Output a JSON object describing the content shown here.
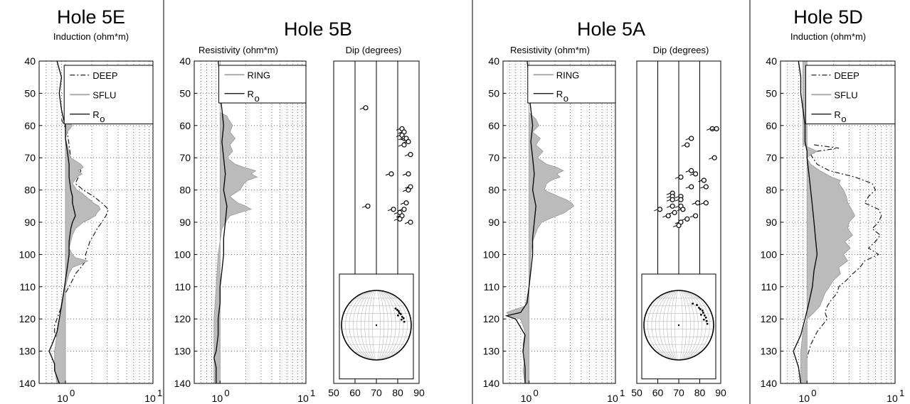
{
  "chart_data": [
    {
      "type": "line",
      "panel": "Hole 5E",
      "title": "Hole 5E",
      "subtitle": "Induction (ohm*m)",
      "xscale": "log",
      "xlim": [
        0.5,
        10
      ],
      "ylim": [
        40,
        140
      ],
      "y_reversed": true,
      "yticks": [
        "40",
        "50",
        "60",
        "70",
        "80",
        "90",
        "100",
        "110",
        "120",
        "130",
        "140"
      ],
      "xtick_base": [
        "10",
        "10"
      ],
      "xtick_exp": [
        "0",
        "1"
      ],
      "grid": true,
      "legend_position": "top-right",
      "legend_box_bottom_depth": 59.5,
      "series": [
        {
          "name": "DEEP",
          "suffix": "",
          "style": "dashdot",
          "color": "#222222",
          "depth": [
            58,
            62,
            66,
            70,
            72,
            74,
            76,
            78,
            80,
            82,
            84,
            86,
            88,
            90,
            92,
            94,
            96,
            98,
            100,
            102,
            104,
            106,
            108,
            110,
            112,
            114,
            116,
            118,
            120,
            122,
            124,
            126,
            128,
            130,
            134,
            140
          ],
          "values": [
            0.9,
            1.05,
            1.1,
            1.15,
            1.3,
            1.5,
            1.4,
            1.3,
            1.6,
            2.1,
            2.6,
            3.1,
            2.9,
            2.6,
            2.3,
            2.1,
            1.9,
            1.8,
            1.7,
            1.7,
            1.5,
            1.3,
            1.2,
            1.1,
            1.0,
            0.95,
            0.9,
            0.85,
            0.8,
            0.75,
            0.75,
            0.8,
            0.8,
            0.75,
            0.8,
            0.8
          ]
        },
        {
          "name": "SFLU",
          "suffix": "",
          "style": "fill",
          "color": "#bbbbbb",
          "depth": [
            58,
            60,
            62,
            64,
            66,
            70,
            72,
            73,
            74,
            75,
            76,
            78,
            80,
            81,
            82,
            83,
            84,
            85,
            86,
            87,
            88,
            89,
            90,
            92,
            94,
            96,
            98,
            100,
            101,
            102,
            103,
            104,
            106,
            110,
            115,
            120,
            125,
            130,
            135,
            140
          ],
          "values": [
            0.95,
            1.2,
            1.05,
            1.0,
            1.05,
            1.15,
            1.5,
            1.6,
            1.4,
            1.55,
            1.35,
            1.2,
            1.35,
            1.55,
            1.7,
            1.9,
            2.1,
            2.4,
            2.5,
            2.3,
            2.2,
            1.9,
            1.6,
            1.3,
            1.2,
            1.15,
            1.1,
            1.2,
            1.3,
            1.8,
            1.5,
            1.2,
            1.1,
            1.0,
            0.9,
            0.85,
            0.8,
            0.75,
            0.75,
            0.8
          ]
        },
        {
          "name": "R",
          "suffix": "o",
          "style": "solid",
          "color": "#000000",
          "depth": [
            40,
            45,
            50,
            55,
            58,
            60,
            64,
            68,
            72,
            76,
            80,
            82,
            84,
            86,
            88,
            90,
            92,
            96,
            100,
            104,
            108,
            112,
            116,
            120,
            124,
            128,
            130,
            132,
            134,
            136,
            140
          ],
          "values": [
            0.8,
            0.9,
            0.85,
            0.9,
            0.95,
            1.0,
            1.0,
            1.05,
            1.1,
            1.1,
            1.15,
            1.2,
            1.2,
            1.25,
            1.3,
            1.2,
            1.15,
            1.1,
            1.1,
            1.05,
            1.0,
            0.95,
            0.9,
            0.85,
            0.8,
            0.7,
            0.65,
            0.7,
            0.75,
            0.75,
            0.85
          ]
        }
      ]
    },
    {
      "type": "line",
      "panel": "Hole 5B",
      "title": "Hole 5B",
      "subtitle": "Resistivity (ohm*m)",
      "xscale": "log",
      "xlim": [
        0.5,
        10
      ],
      "ylim": [
        40,
        140
      ],
      "y_reversed": true,
      "yticks": [
        "40",
        "50",
        "60",
        "70",
        "80",
        "90",
        "100",
        "110",
        "120",
        "130",
        "140"
      ],
      "xtick_base": [
        "10",
        "10"
      ],
      "xtick_exp": [
        "0",
        "1"
      ],
      "grid": true,
      "legend_position": "top-right",
      "legend_box_bottom_depth": 53,
      "series": [
        {
          "name": "RING",
          "suffix": "",
          "style": "fill",
          "color": "#bbbbbb",
          "depth": [
            40,
            50,
            56,
            57,
            58,
            60,
            62,
            64,
            66,
            68,
            70,
            72,
            73,
            74,
            75,
            76,
            77,
            78,
            80,
            82,
            84,
            85,
            86,
            87,
            88,
            90,
            92,
            96,
            100,
            110,
            120,
            130,
            140
          ],
          "values": [
            1.0,
            1.0,
            1.0,
            1.2,
            1.25,
            1.4,
            1.3,
            1.5,
            1.3,
            1.4,
            1.2,
            1.5,
            1.9,
            2.6,
            2.3,
            2.7,
            2.1,
            1.9,
            1.7,
            1.3,
            1.6,
            2.0,
            2.3,
            1.7,
            1.3,
            1.15,
            1.05,
            1.0,
            0.95,
            0.9,
            0.85,
            0.85,
            0.85
          ]
        },
        {
          "name": "R",
          "suffix": "o",
          "style": "solid",
          "color": "#000000",
          "depth": [
            40,
            45,
            50,
            55,
            60,
            65,
            70,
            75,
            80,
            85,
            90,
            95,
            100,
            105,
            110,
            115,
            120,
            125,
            130,
            132,
            135,
            140
          ],
          "values": [
            0.95,
            1.0,
            1.0,
            1.05,
            1.1,
            1.05,
            1.1,
            1.15,
            1.1,
            1.2,
            1.15,
            1.1,
            1.1,
            1.05,
            1.0,
            1.0,
            0.95,
            0.95,
            0.9,
            0.85,
            0.9,
            0.9
          ]
        }
      ]
    },
    {
      "type": "scatter",
      "panel": "Hole 5B dip",
      "subtitle": "Dip (degrees)",
      "xlim": [
        50,
        90
      ],
      "ylim": [
        40,
        140
      ],
      "y_reversed": true,
      "xticks": [
        "50",
        "60",
        "70",
        "80",
        "90"
      ],
      "depth": [
        54.5,
        61,
        62,
        63,
        64,
        64,
        65,
        66,
        69,
        75,
        75,
        79,
        80,
        85,
        84,
        86,
        86,
        87,
        88,
        89,
        90
      ],
      "dip": [
        65,
        82,
        83,
        82,
        83,
        84,
        85,
        83,
        86,
        77,
        85,
        86,
        85,
        66,
        84,
        78,
        83,
        81,
        82,
        81,
        86
      ]
    },
    {
      "type": "line",
      "panel": "Hole 5A",
      "title": "Hole 5A",
      "subtitle": "Resistivity (ohm*m)",
      "xscale": "log",
      "xlim": [
        0.5,
        10
      ],
      "ylim": [
        40,
        140
      ],
      "y_reversed": true,
      "yticks": [
        "40",
        "50",
        "60",
        "70",
        "80",
        "90",
        "100",
        "110",
        "120",
        "130",
        "140"
      ],
      "xtick_base": [
        "10",
        "10"
      ],
      "xtick_exp": [
        "0",
        "1"
      ],
      "grid": true,
      "legend_position": "top-right",
      "legend_box_bottom_depth": 53,
      "series": [
        {
          "name": "RING",
          "suffix": "",
          "style": "fill",
          "color": "#bbbbbb",
          "depth": [
            40,
            56,
            58,
            60,
            62,
            64,
            66,
            68,
            70,
            72,
            73,
            74,
            75,
            76,
            77,
            78,
            80,
            81,
            82,
            83,
            84,
            85,
            86,
            87,
            88,
            89,
            90,
            92,
            96,
            100,
            110,
            116,
            118,
            119,
            120,
            124,
            128,
            132,
            136,
            140
          ],
          "values": [
            1.0,
            1.0,
            1.2,
            1.3,
            1.1,
            1.35,
            1.2,
            1.45,
            1.25,
            1.6,
            2.1,
            2.5,
            2.1,
            2.3,
            1.8,
            1.6,
            1.5,
            1.8,
            2.2,
            2.7,
            3.1,
            3.3,
            2.9,
            2.6,
            2.1,
            1.7,
            1.4,
            1.25,
            1.1,
            1.05,
            1.0,
            0.9,
            0.55,
            0.6,
            0.8,
            0.9,
            0.85,
            0.9,
            0.85,
            0.9
          ]
        },
        {
          "name": "R",
          "suffix": "o",
          "style": "solid",
          "color": "#000000",
          "depth": [
            40,
            45,
            50,
            55,
            60,
            65,
            70,
            75,
            80,
            85,
            90,
            95,
            100,
            105,
            110,
            115,
            118,
            119,
            120,
            125,
            130,
            135,
            140
          ],
          "values": [
            0.95,
            1.0,
            1.0,
            1.05,
            1.1,
            1.05,
            1.1,
            1.15,
            1.1,
            1.2,
            1.15,
            1.1,
            1.1,
            1.05,
            1.0,
            0.95,
            0.8,
            0.55,
            0.7,
            0.9,
            0.85,
            0.9,
            0.9
          ]
        }
      ]
    },
    {
      "type": "scatter",
      "panel": "Hole 5A dip",
      "subtitle": "Dip (degrees)",
      "xlim": [
        50,
        90
      ],
      "ylim": [
        40,
        140
      ],
      "y_reversed": true,
      "xticks": [
        "50",
        "60",
        "70",
        "80",
        "90"
      ],
      "depth": [
        61,
        61,
        64,
        66,
        70,
        74,
        75,
        76,
        77,
        79,
        79,
        81,
        82,
        82,
        83,
        83,
        84,
        84,
        85,
        85,
        86,
        86,
        87,
        88,
        88,
        89,
        90,
        91
      ],
      "dip": [
        86,
        88,
        76,
        74,
        87,
        76,
        78,
        71,
        82,
        76,
        83,
        67,
        67,
        71,
        67,
        71,
        79,
        83,
        67,
        71,
        61,
        72,
        68,
        65,
        78,
        74,
        71,
        70
      ]
    },
    {
      "type": "line",
      "panel": "Hole 5D",
      "title": "Hole 5D",
      "subtitle": "Induction (ohm*m)",
      "xscale": "log",
      "xlim": [
        0.5,
        10
      ],
      "ylim": [
        40,
        140
      ],
      "y_reversed": true,
      "yticks": [
        "40",
        "50",
        "60",
        "70",
        "80",
        "90",
        "100",
        "110",
        "120",
        "130",
        "140"
      ],
      "xtick_base": [
        "10",
        "10"
      ],
      "xtick_exp": [
        "0",
        "1"
      ],
      "grid": true,
      "legend_position": "top-right",
      "legend_box_bottom_depth": 59.5,
      "series": [
        {
          "name": "DEEP",
          "suffix": "",
          "style": "dashdot",
          "color": "#222222",
          "depth": [
            66,
            67,
            68,
            69,
            72,
            74,
            76,
            78,
            80,
            82,
            84,
            86,
            88,
            90,
            92,
            94,
            96,
            98,
            100,
            102,
            104,
            106,
            108,
            110,
            112,
            114,
            116,
            118,
            120,
            124,
            128,
            132,
            136,
            140
          ],
          "values": [
            1.2,
            2.3,
            1.3,
            1.1,
            1.3,
            1.8,
            3.5,
            5.5,
            6.0,
            5.0,
            4.5,
            6.5,
            7.0,
            6.5,
            5.5,
            6.8,
            6.0,
            5.0,
            6.5,
            4.5,
            4.0,
            3.3,
            2.8,
            2.3,
            2.2,
            1.9,
            1.7,
            1.6,
            1.7,
            1.3,
            1.1,
            1.0,
            0.9,
            0.9
          ]
        },
        {
          "name": "SFLU",
          "suffix": "",
          "style": "fill",
          "color": "#bbbbbb",
          "depth": [
            40,
            66,
            68,
            69,
            70,
            72,
            74,
            76,
            77,
            78,
            80,
            82,
            84,
            86,
            88,
            90,
            92,
            94,
            96,
            98,
            100,
            102,
            104,
            106,
            108,
            110,
            112,
            114,
            116,
            118,
            120,
            124,
            130,
            140
          ],
          "values": [
            0.9,
            0.9,
            1.3,
            1.1,
            1.0,
            1.1,
            1.4,
            1.9,
            2.4,
            2.3,
            2.6,
            2.8,
            2.9,
            3.2,
            3.5,
            3.0,
            2.9,
            3.3,
            2.7,
            3.1,
            2.6,
            2.9,
            2.3,
            2.4,
            2.0,
            1.8,
            1.6,
            1.5,
            1.4,
            1.2,
            1.0,
            0.9,
            0.85,
            0.85
          ]
        },
        {
          "name": "R",
          "suffix": "o",
          "style": "solid",
          "color": "#000000",
          "depth": [
            40,
            45,
            50,
            55,
            60,
            65,
            68,
            70,
            75,
            80,
            85,
            90,
            95,
            100,
            105,
            110,
            115,
            120,
            125,
            130,
            135,
            140
          ],
          "values": [
            0.8,
            0.85,
            0.85,
            0.9,
            0.95,
            0.95,
            1.0,
            1.0,
            1.05,
            1.1,
            1.15,
            1.2,
            1.25,
            1.3,
            1.2,
            1.15,
            1.05,
            0.95,
            0.85,
            0.7,
            0.8,
            0.85
          ]
        }
      ]
    }
  ],
  "stereonets": [
    {
      "panel": "Hole 5B",
      "poles": [
        [
          0.55,
          -0.48
        ],
        [
          0.6,
          -0.44
        ],
        [
          0.64,
          -0.4
        ],
        [
          0.66,
          -0.35
        ],
        [
          0.7,
          -0.32
        ],
        [
          0.62,
          -0.28
        ],
        [
          0.74,
          -0.24
        ],
        [
          0.78,
          -0.2
        ],
        [
          0.72,
          -0.16
        ],
        [
          0.8,
          -0.1
        ]
      ]
    },
    {
      "panel": "Hole 5A",
      "poles": [
        [
          0.4,
          -0.62
        ],
        [
          0.52,
          -0.58
        ],
        [
          0.58,
          -0.5
        ],
        [
          0.62,
          -0.46
        ],
        [
          0.68,
          -0.42
        ],
        [
          0.7,
          -0.36
        ],
        [
          0.64,
          -0.3
        ],
        [
          0.74,
          -0.28
        ],
        [
          0.78,
          -0.22
        ],
        [
          0.72,
          -0.16
        ],
        [
          0.8,
          -0.12
        ],
        [
          0.82,
          -0.04
        ]
      ]
    }
  ]
}
